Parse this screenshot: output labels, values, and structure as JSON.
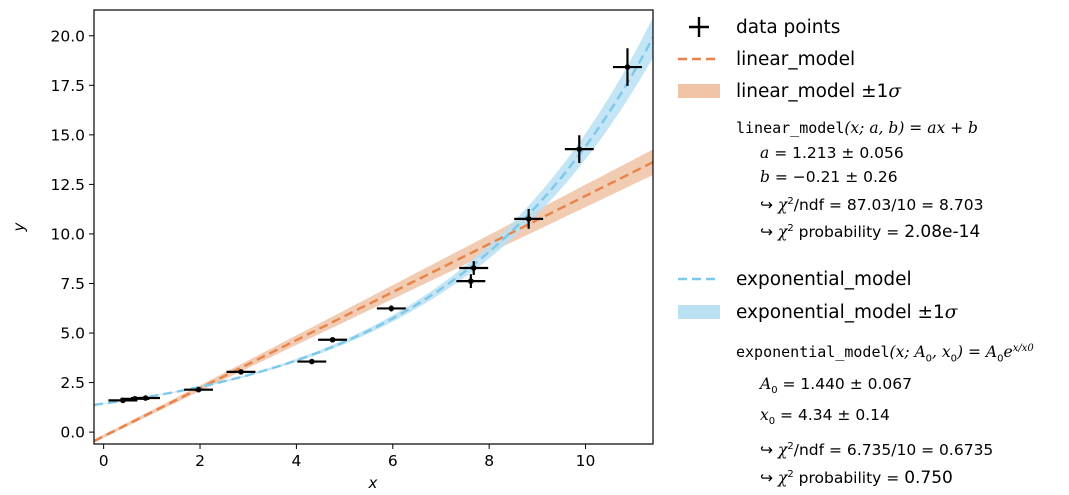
{
  "chart_data": {
    "type": "scatter",
    "xlabel": "x",
    "ylabel": "y",
    "xlim": [
      -0.2,
      11.4
    ],
    "ylim": [
      -0.6,
      21.3
    ],
    "x_ticks": [
      "0",
      "2",
      "4",
      "6",
      "8",
      "10"
    ],
    "y_ticks": [
      "0.0",
      "2.5",
      "5.0",
      "7.5",
      "10.0",
      "12.5",
      "15.0",
      "17.5",
      "20.0"
    ],
    "grid": false,
    "legend_placement": "outside-right",
    "colors": {
      "points": "#000000",
      "linear": "#e8834a",
      "linear_band": "#f0c2a6",
      "exponential": "#7ec8e8",
      "exponential_band": "#b9e1f3"
    },
    "series": [
      {
        "name": "data points",
        "kind": "errorbar",
        "points": [
          {
            "x": 0.4,
            "y": 1.6,
            "xerr": 0.3,
            "yerr": 0.08
          },
          {
            "x": 0.65,
            "y": 1.68,
            "xerr": 0.3,
            "yerr": 0.08
          },
          {
            "x": 0.87,
            "y": 1.72,
            "xerr": 0.3,
            "yerr": 0.08
          },
          {
            "x": 1.97,
            "y": 2.14,
            "xerr": 0.3,
            "yerr": 0.08
          },
          {
            "x": 2.85,
            "y": 3.04,
            "xerr": 0.3,
            "yerr": 0.1
          },
          {
            "x": 4.32,
            "y": 3.56,
            "xerr": 0.3,
            "yerr": 0.1
          },
          {
            "x": 4.75,
            "y": 4.66,
            "xerr": 0.3,
            "yerr": 0.12
          },
          {
            "x": 5.97,
            "y": 6.24,
            "xerr": 0.3,
            "yerr": 0.15
          },
          {
            "x": 7.62,
            "y": 7.62,
            "xerr": 0.3,
            "yerr": 0.35
          },
          {
            "x": 7.68,
            "y": 8.28,
            "xerr": 0.3,
            "yerr": 0.35
          },
          {
            "x": 8.82,
            "y": 10.76,
            "xerr": 0.3,
            "yerr": 0.5
          },
          {
            "x": 9.87,
            "y": 14.28,
            "xerr": 0.3,
            "yerr": 0.7
          },
          {
            "x": 10.87,
            "y": 18.42,
            "xerr": 0.3,
            "yerr": 0.95
          }
        ]
      },
      {
        "name": "linear_model",
        "kind": "model",
        "model": "linear",
        "params": {
          "a": 1.213,
          "b": -0.21
        }
      },
      {
        "name": "linear_model ±1σ",
        "kind": "band",
        "model": "linear",
        "params": {
          "a": 1.213,
          "a_err": 0.056,
          "b": -0.21,
          "b_err": 0.26
        }
      },
      {
        "name": "exponential_model",
        "kind": "model",
        "model": "exponential",
        "params": {
          "A0": 1.44,
          "x0": 4.34
        }
      },
      {
        "name": "exponential_model ±1σ",
        "kind": "band",
        "model": "exponential",
        "params": {
          "A0": 1.44,
          "A0_err": 0.067,
          "x0": 4.34,
          "x0_err": 0.14
        }
      }
    ]
  },
  "legend": {
    "data_points": "data points",
    "linear_model": "linear_model",
    "linear_band": "linear_model ±1",
    "linear_band_sigma": "σ",
    "exponential_model": "exponential_model",
    "exponential_band": "exponential_model ±1",
    "exponential_band_sigma": "σ"
  },
  "linear_info": {
    "signature_name": "linear_model",
    "signature_args": "(x; a, b) = ax + b",
    "a_label": "a",
    "a_value": "=  1.213 ± 0.056",
    "b_label": "b",
    "b_value": "=  −0.21 ± 0.26",
    "chi2ndf_arrow": "↪",
    "chi2ndf_symbol": "χ",
    "chi2ndf_sup": "2",
    "chi2ndf_text": "/ndf = 87.03/10 = 8.703",
    "prob_arrow": "↪",
    "prob_symbol": "χ",
    "prob_sup": "2",
    "prob_label": " probability = ",
    "prob_value": "2.08e-14"
  },
  "exponential_info": {
    "signature_name": "exponential_model",
    "signature_args": "(x; A",
    "signature_sub1": "0",
    "signature_args2": ", x",
    "signature_sub2": "0",
    "signature_args3": ") = A",
    "signature_sub3": "0",
    "signature_args4": "e",
    "signature_sup": "x/x0",
    "A0_label": "A",
    "A0_sub": "0",
    "A0_value": " =  1.440 ± 0.067",
    "x0_label": "x",
    "x0_sub": "0",
    "x0_value": " =  4.34 ± 0.14",
    "chi2ndf_arrow": "↪",
    "chi2ndf_symbol": "χ",
    "chi2ndf_sup": "2",
    "chi2ndf_text": "/ndf = 6.735/10 = 0.6735",
    "prob_arrow": "↪",
    "prob_symbol": "χ",
    "prob_sup": "2",
    "prob_label": " probability = ",
    "prob_value": "0.750"
  }
}
